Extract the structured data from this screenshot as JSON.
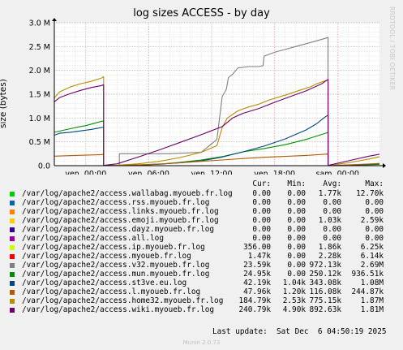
{
  "chart_data": {
    "type": "line",
    "title": "log sizes ACCESS - by day",
    "ylabel": "size (bytes)",
    "watermark": "RRDTOOL / TOBI OETIKER",
    "x_ticks": [
      "ven. 00:00",
      "ven. 06:00",
      "ven. 12:00",
      "ven. 18:00",
      "sam. 00:00"
    ],
    "x_tick_hours": [
      3,
      9,
      15,
      21,
      27
    ],
    "xlim_hours": [
      0,
      31
    ],
    "ylim": [
      0,
      3000000
    ],
    "y_ticks": [
      {
        "value": 0,
        "label": "0.0"
      },
      {
        "value": 500000,
        "label": "0.5 M"
      },
      {
        "value": 1000000,
        "label": "1.0 M"
      },
      {
        "value": 1500000,
        "label": "1.5 M"
      },
      {
        "value": 2000000,
        "label": "2.0 M"
      },
      {
        "value": 2500000,
        "label": "2.5 M"
      },
      {
        "value": 3000000,
        "label": "3.0 M"
      }
    ],
    "grid": true,
    "legend_header": {
      "cur": "Cur:",
      "min": "Min:",
      "avg": "Avg:",
      "max": "Max:"
    },
    "series": [
      {
        "name": "/var/log/apache2/access.wallabag.myoueb.fr.log",
        "color": "#00cc00",
        "cur": "0.00",
        "min": "0.00",
        "avg": "1.77k",
        "max": "12.70k",
        "points": [
          [
            0,
            0
          ],
          [
            31,
            0
          ]
        ]
      },
      {
        "name": "/var/log/apache2/access.rss.myoueb.fr.log",
        "color": "#0066b3",
        "cur": "0.00",
        "min": "0.00",
        "avg": "0.00",
        "max": "0.00",
        "points": [
          [
            0,
            0
          ],
          [
            31,
            0
          ]
        ]
      },
      {
        "name": "/var/log/apache2/access.links.myoueb.fr.log",
        "color": "#ff8000",
        "cur": "0.00",
        "min": "0.00",
        "avg": "0.00",
        "max": "0.00",
        "points": [
          [
            0,
            0
          ],
          [
            31,
            0
          ]
        ]
      },
      {
        "name": "/var/log/apache2/access.emoji.myoueb.fr.log",
        "color": "#ffcc00",
        "cur": "0.00",
        "min": "0.00",
        "avg": "1.03k",
        "max": "2.59k",
        "points": [
          [
            0,
            0
          ],
          [
            31,
            0
          ]
        ]
      },
      {
        "name": "/var/log/apache2/access.dayz.myoueb.fr.log",
        "color": "#330099",
        "cur": "0.00",
        "min": "0.00",
        "avg": "0.00",
        "max": "0.00",
        "points": [
          [
            0,
            0
          ],
          [
            31,
            0
          ]
        ]
      },
      {
        "name": "/var/log/apache2/access.all.log",
        "color": "#990099",
        "cur": "0.00",
        "min": "0.00",
        "avg": "0.00",
        "max": "0.00",
        "points": [
          [
            0,
            0
          ],
          [
            31,
            0
          ]
        ]
      },
      {
        "name": "/var/log/apache2/access.ip.myoueb.fr.log",
        "color": "#ccff00",
        "cur": "356.00",
        "min": "0.00",
        "avg": "1.86k",
        "max": "6.25k",
        "points": [
          [
            0,
            0
          ],
          [
            31,
            0
          ]
        ]
      },
      {
        "name": "/var/log/apache2/access.myoueb.fr.log",
        "color": "#ff0000",
        "cur": "1.47k",
        "min": "0.00",
        "avg": "2.28k",
        "max": "6.14k",
        "points": [
          [
            0,
            0
          ],
          [
            31,
            0
          ]
        ]
      },
      {
        "name": "/var/log/apache2/access.v32.myoueb.fr.log",
        "color": "#808080",
        "cur": "23.59k",
        "min": "0.00",
        "avg": "972.13k",
        "max": "2.69M",
        "points": [
          [
            0,
            0
          ],
          [
            4.5,
            0
          ],
          [
            6.2,
            0
          ],
          [
            6.2,
            250000
          ],
          [
            11,
            250000
          ],
          [
            14,
            280000
          ],
          [
            15.5,
            550000
          ],
          [
            16,
            1450000
          ],
          [
            16.4,
            1600000
          ],
          [
            16.6,
            1850000
          ],
          [
            17,
            1920000
          ],
          [
            17.5,
            2050000
          ],
          [
            18.5,
            2080000
          ],
          [
            19.5,
            2080000
          ],
          [
            19.9,
            2100000
          ],
          [
            20,
            2300000
          ],
          [
            21,
            2380000
          ],
          [
            22,
            2440000
          ],
          [
            23,
            2500000
          ],
          [
            24,
            2560000
          ],
          [
            25,
            2620000
          ],
          [
            26.1,
            2690000
          ],
          [
            26.1,
            0
          ],
          [
            31,
            0
          ]
        ]
      },
      {
        "name": "/var/log/apache2/access.mun.myoueb.fr.log",
        "color": "#008f00",
        "cur": "24.95k",
        "min": "0.00",
        "avg": "250.12k",
        "max": "936.51k",
        "points": [
          [
            -0.4,
            700000
          ],
          [
            1,
            750000
          ],
          [
            2,
            800000
          ],
          [
            3,
            840000
          ],
          [
            4,
            900000
          ],
          [
            4.5,
            930000
          ],
          [
            4.7,
            940000
          ],
          [
            4.7,
            0
          ],
          [
            6.5,
            0
          ],
          [
            8,
            10000
          ],
          [
            10,
            30000
          ],
          [
            12,
            70000
          ],
          [
            14,
            120000
          ],
          [
            16,
            190000
          ],
          [
            18,
            290000
          ],
          [
            20,
            360000
          ],
          [
            22,
            440000
          ],
          [
            24,
            550000
          ],
          [
            26,
            690000
          ],
          [
            26.1,
            700000
          ],
          [
            26.1,
            0
          ],
          [
            28,
            8000
          ],
          [
            30,
            20000
          ],
          [
            31,
            25000
          ]
        ]
      },
      {
        "name": "/var/log/apache2/access.st3ve.eu.log",
        "color": "#00487d",
        "cur": "42.19k",
        "min": "1.04k",
        "avg": "343.08k",
        "max": "1.08M",
        "points": [
          [
            -0.4,
            640000
          ],
          [
            0.5,
            680000
          ],
          [
            1.5,
            700000
          ],
          [
            2.5,
            730000
          ],
          [
            3.5,
            760000
          ],
          [
            4.5,
            800000
          ],
          [
            4.7,
            810000
          ],
          [
            4.7,
            5000
          ],
          [
            6,
            8000
          ],
          [
            8,
            15000
          ],
          [
            10,
            30000
          ],
          [
            12,
            60000
          ],
          [
            14,
            100000
          ],
          [
            16,
            180000
          ],
          [
            18,
            290000
          ],
          [
            20,
            410000
          ],
          [
            22,
            560000
          ],
          [
            24,
            750000
          ],
          [
            25,
            880000
          ],
          [
            25.8,
            1020000
          ],
          [
            26.1,
            1060000
          ],
          [
            26.1,
            5000
          ],
          [
            28,
            12000
          ],
          [
            30,
            30000
          ],
          [
            31,
            42000
          ]
        ]
      },
      {
        "name": "/var/log/apache2/access.l.myoueb.fr.log",
        "color": "#b35a00",
        "cur": "47.96k",
        "min": "1.20k",
        "avg": "116.08k",
        "max": "244.87k",
        "points": [
          [
            -0.4,
            200000
          ],
          [
            2,
            215000
          ],
          [
            4.5,
            232000
          ],
          [
            4.7,
            240000
          ],
          [
            4.7,
            2000
          ],
          [
            6,
            5000
          ],
          [
            8,
            15000
          ],
          [
            10,
            35000
          ],
          [
            12,
            60000
          ],
          [
            14,
            90000
          ],
          [
            16,
            120000
          ],
          [
            18,
            150000
          ],
          [
            20,
            175000
          ],
          [
            22,
            195000
          ],
          [
            24,
            215000
          ],
          [
            26.1,
            244000
          ],
          [
            26.1,
            2000
          ],
          [
            28,
            15000
          ],
          [
            30,
            35000
          ],
          [
            31,
            48000
          ]
        ]
      },
      {
        "name": "/var/log/apache2/access.home32.myoueb.fr.log",
        "color": "#b38f00",
        "cur": "184.79k",
        "min": "2.53k",
        "avg": "775.15k",
        "max": "1.87M",
        "points": [
          [
            -0.4,
            1420000
          ],
          [
            0.5,
            1550000
          ],
          [
            1.5,
            1650000
          ],
          [
            2.5,
            1720000
          ],
          [
            3.5,
            1770000
          ],
          [
            4.5,
            1840000
          ],
          [
            4.7,
            1870000
          ],
          [
            4.7,
            3000
          ],
          [
            6,
            10000
          ],
          [
            8,
            40000
          ],
          [
            10,
            90000
          ],
          [
            12,
            170000
          ],
          [
            14,
            280000
          ],
          [
            15.5,
            420000
          ],
          [
            16,
            800000
          ],
          [
            16.5,
            1000000
          ],
          [
            17.5,
            1150000
          ],
          [
            18.5,
            1230000
          ],
          [
            19.5,
            1290000
          ],
          [
            20.5,
            1380000
          ],
          [
            22,
            1480000
          ],
          [
            23.5,
            1590000
          ],
          [
            24.5,
            1660000
          ],
          [
            25,
            1720000
          ],
          [
            26.1,
            1800000
          ],
          [
            26.1,
            3000
          ],
          [
            28,
            60000
          ],
          [
            30,
            140000
          ],
          [
            31,
            185000
          ]
        ]
      },
      {
        "name": "/var/log/apache2/access.wiki.myoueb.fr.log",
        "color": "#6b006b",
        "cur": "240.79k",
        "min": "4.90k",
        "avg": "892.63k",
        "max": "1.81M",
        "points": [
          [
            -0.4,
            1340000
          ],
          [
            0.5,
            1430000
          ],
          [
            1.5,
            1510000
          ],
          [
            2.5,
            1580000
          ],
          [
            3.5,
            1640000
          ],
          [
            4.5,
            1680000
          ],
          [
            4.7,
            1700000
          ],
          [
            4.7,
            5000
          ],
          [
            6,
            40000
          ],
          [
            8,
            180000
          ],
          [
            10,
            330000
          ],
          [
            12,
            490000
          ],
          [
            14,
            650000
          ],
          [
            16,
            820000
          ],
          [
            17,
            1000000
          ],
          [
            18,
            1100000
          ],
          [
            19.5,
            1200000
          ],
          [
            21,
            1330000
          ],
          [
            22.5,
            1450000
          ],
          [
            24,
            1570000
          ],
          [
            25.5,
            1720000
          ],
          [
            26.1,
            1810000
          ],
          [
            26.1,
            5000
          ],
          [
            28,
            100000
          ],
          [
            30,
            200000
          ],
          [
            31,
            241000
          ]
        ]
      }
    ]
  },
  "footer": {
    "last_update": "Last update:  Sat Dec  6 04:50:19 2025",
    "generator": "Munin 2.0.73"
  }
}
